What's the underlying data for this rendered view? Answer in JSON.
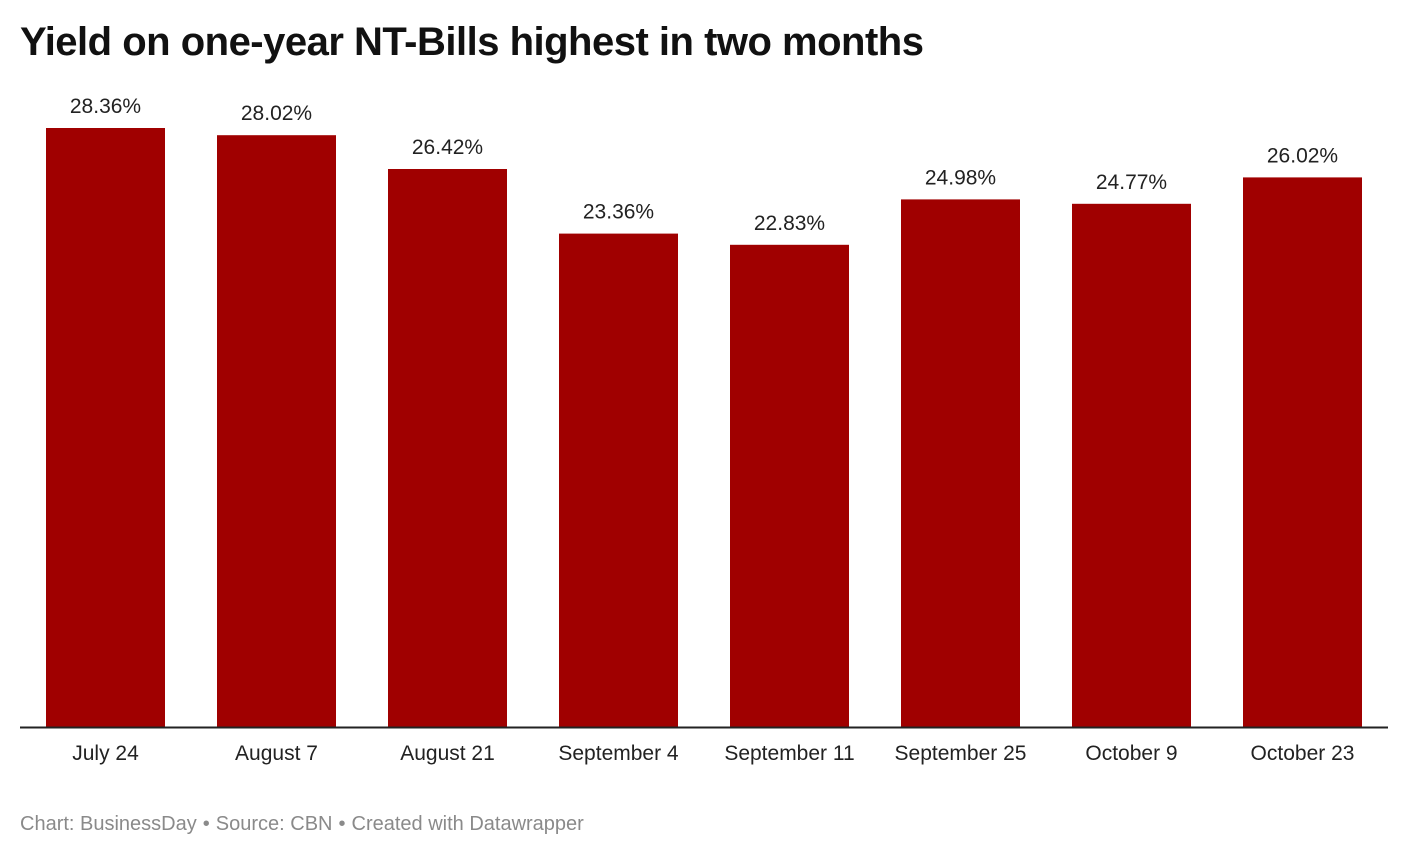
{
  "title": "Yield on one-year NT-Bills highest in two months",
  "footer": {
    "chart_credit": "Chart: BusinessDay",
    "source": "Source: CBN",
    "created_with": "Created with Datawrapper",
    "separator": "•"
  },
  "colors": {
    "bar": "#a00000",
    "axis": "#222222",
    "label": "#222222"
  },
  "chart_data": {
    "type": "bar",
    "title": "Yield on one-year NT-Bills highest in two months",
    "categories": [
      "July 24",
      "August 7",
      "August 21",
      "September 4",
      "September 11",
      "September 25",
      "October 9",
      "October 23"
    ],
    "values": [
      28.36,
      28.02,
      26.42,
      23.36,
      22.83,
      24.98,
      24.77,
      26.02
    ],
    "value_labels": [
      "28.36%",
      "28.02%",
      "26.42%",
      "23.36%",
      "22.83%",
      "24.98%",
      "24.77%",
      "26.02%"
    ],
    "unit": "%",
    "ylim": [
      0,
      28.36
    ],
    "grid": false,
    "legend": "none"
  }
}
